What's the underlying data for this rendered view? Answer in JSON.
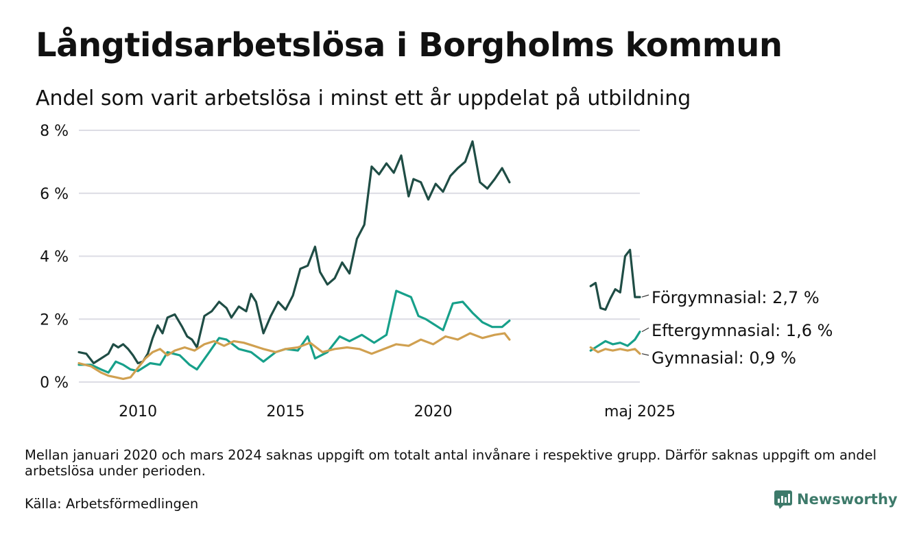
{
  "header": {
    "title": "Långtidsarbetslösa i Borgholms kommun",
    "subtitle": "Andel som varit arbetslösa i minst ett år uppdelat på utbildning"
  },
  "footer": {
    "note": "Mellan januari 2020 och mars 2024 saknas uppgift om totalt antal invånare i respektive grupp. Därför saknas uppgift om andel arbetslösa under perioden.",
    "source": "Källa: Arbetsförmedlingen",
    "brand": "Newsworthy"
  },
  "colors": {
    "forgymnasial": "#1f4d45",
    "eftergymnasial": "#17a08a",
    "gymnasial": "#d0a050",
    "grid": "#dcdce4",
    "brand": "#3d7a6a"
  },
  "chart_data": {
    "type": "line",
    "title": "Långtidsarbetslösa i Borgholms kommun",
    "subtitle": "Andel som varit arbetslösa i minst ett år uppdelat på utbildning",
    "y_unit": "%",
    "ylim": [
      0,
      8
    ],
    "y_ticks": [
      0,
      2,
      4,
      6,
      8
    ],
    "y_tick_labels": [
      "0 %",
      "2 %",
      "4 %",
      "6 %",
      "8 %"
    ],
    "x_tick_labels": [
      "2010",
      "2015",
      "2020",
      "maj 2025"
    ],
    "grid": true,
    "series": [
      {
        "name": "Förgymnasial",
        "end_label": "Förgymnasial: 2,7 %",
        "color": "#1f4d45",
        "segments": [
          [
            [
              "2008-01",
              0.95
            ],
            [
              "2008-04",
              0.9
            ],
            [
              "2008-07",
              0.6
            ],
            [
              "2008-10",
              0.75
            ],
            [
              "2009-01",
              0.9
            ],
            [
              "2009-03",
              1.2
            ],
            [
              "2009-05",
              1.1
            ],
            [
              "2009-07",
              1.2
            ],
            [
              "2009-09",
              1.05
            ],
            [
              "2009-11",
              0.85
            ],
            [
              "2010-01",
              0.6
            ],
            [
              "2010-03",
              0.65
            ],
            [
              "2010-05",
              0.9
            ],
            [
              "2010-07",
              1.4
            ],
            [
              "2010-09",
              1.8
            ],
            [
              "2010-11",
              1.55
            ],
            [
              "2011-01",
              2.05
            ],
            [
              "2011-04",
              2.15
            ],
            [
              "2011-07",
              1.75
            ],
            [
              "2011-09",
              1.45
            ],
            [
              "2011-11",
              1.35
            ],
            [
              "2012-01",
              1.1
            ],
            [
              "2012-04",
              2.1
            ],
            [
              "2012-07",
              2.25
            ],
            [
              "2012-10",
              2.55
            ],
            [
              "2013-01",
              2.35
            ],
            [
              "2013-03",
              2.05
            ],
            [
              "2013-06",
              2.4
            ],
            [
              "2013-09",
              2.25
            ],
            [
              "2013-11",
              2.8
            ],
            [
              "2014-01",
              2.55
            ],
            [
              "2014-04",
              1.55
            ],
            [
              "2014-07",
              2.1
            ],
            [
              "2014-10",
              2.55
            ],
            [
              "2015-01",
              2.3
            ],
            [
              "2015-04",
              2.75
            ],
            [
              "2015-07",
              3.6
            ],
            [
              "2015-10",
              3.7
            ],
            [
              "2016-01",
              4.3
            ],
            [
              "2016-03",
              3.5
            ],
            [
              "2016-06",
              3.1
            ],
            [
              "2016-09",
              3.3
            ],
            [
              "2016-12",
              3.8
            ],
            [
              "2017-03",
              3.45
            ],
            [
              "2017-06",
              4.55
            ],
            [
              "2017-09",
              5.0
            ],
            [
              "2017-12",
              6.85
            ],
            [
              "2018-03",
              6.6
            ],
            [
              "2018-06",
              6.95
            ],
            [
              "2018-09",
              6.65
            ],
            [
              "2018-12",
              7.2
            ],
            [
              "2019-03",
              5.9
            ],
            [
              "2019-05",
              6.45
            ],
            [
              "2019-08",
              6.35
            ],
            [
              "2019-11",
              5.8
            ],
            [
              "2020-02",
              6.3
            ],
            [
              "2020-05",
              6.05
            ],
            [
              "2020-08",
              6.55
            ],
            [
              "2020-11",
              6.8
            ],
            [
              "2021-02",
              7.0
            ],
            [
              "2021-05",
              7.65
            ],
            [
              "2021-08",
              6.35
            ],
            [
              "2021-11",
              6.15
            ],
            [
              "2022-02",
              6.45
            ],
            [
              "2022-05",
              6.8
            ],
            [
              "2022-08",
              6.35
            ]
          ],
          [
            [
              "2025-05",
              3.05
            ],
            [
              "2025-07",
              3.15
            ],
            [
              "2025-09",
              2.35
            ],
            [
              "2025-11",
              2.3
            ],
            [
              "2026-01",
              2.65
            ],
            [
              "2026-03",
              2.95
            ],
            [
              "2026-05",
              2.85
            ],
            [
              "2026-07",
              4.0
            ],
            [
              "2026-09",
              4.2
            ],
            [
              "2026-11",
              2.7
            ],
            [
              "2027-01",
              2.7
            ]
          ]
        ]
      },
      {
        "name": "Eftergymnasial",
        "end_label": "Eftergymnasial: 1,6 %",
        "color": "#17a08a",
        "segments": [
          [
            [
              "2008-01",
              0.55
            ],
            [
              "2008-06",
              0.55
            ],
            [
              "2008-10",
              0.4
            ],
            [
              "2009-01",
              0.3
            ],
            [
              "2009-04",
              0.65
            ],
            [
              "2009-07",
              0.55
            ],
            [
              "2009-10",
              0.4
            ],
            [
              "2010-01",
              0.35
            ],
            [
              "2010-06",
              0.6
            ],
            [
              "2010-10",
              0.55
            ],
            [
              "2011-01",
              0.95
            ],
            [
              "2011-06",
              0.85
            ],
            [
              "2011-10",
              0.55
            ],
            [
              "2012-01",
              0.4
            ],
            [
              "2012-06",
              0.95
            ],
            [
              "2012-10",
              1.4
            ],
            [
              "2013-01",
              1.35
            ],
            [
              "2013-06",
              1.05
            ],
            [
              "2013-11",
              0.95
            ],
            [
              "2014-04",
              0.65
            ],
            [
              "2014-09",
              0.95
            ],
            [
              "2015-01",
              1.05
            ],
            [
              "2015-06",
              1.0
            ],
            [
              "2015-10",
              1.45
            ],
            [
              "2016-01",
              0.75
            ],
            [
              "2016-06",
              0.95
            ],
            [
              "2016-11",
              1.45
            ],
            [
              "2017-03",
              1.3
            ],
            [
              "2017-08",
              1.5
            ],
            [
              "2018-01",
              1.25
            ],
            [
              "2018-06",
              1.5
            ],
            [
              "2018-10",
              2.9
            ],
            [
              "2019-01",
              2.8
            ],
            [
              "2019-04",
              2.7
            ],
            [
              "2019-07",
              2.1
            ],
            [
              "2019-10",
              2.0
            ],
            [
              "2020-01",
              1.85
            ],
            [
              "2020-05",
              1.65
            ],
            [
              "2020-09",
              2.5
            ],
            [
              "2021-01",
              2.55
            ],
            [
              "2021-05",
              2.2
            ],
            [
              "2021-09",
              1.9
            ],
            [
              "2022-01",
              1.75
            ],
            [
              "2022-05",
              1.75
            ],
            [
              "2022-08",
              1.95
            ]
          ],
          [
            [
              "2025-05",
              1.0
            ],
            [
              "2025-08",
              1.15
            ],
            [
              "2025-11",
              1.3
            ],
            [
              "2026-02",
              1.2
            ],
            [
              "2026-05",
              1.25
            ],
            [
              "2026-08",
              1.15
            ],
            [
              "2026-11",
              1.35
            ],
            [
              "2027-01",
              1.6
            ]
          ]
        ]
      },
      {
        "name": "Gymnasial",
        "end_label": "Gymnasial: 0,9 %",
        "color": "#d0a050",
        "segments": [
          [
            [
              "2008-01",
              0.6
            ],
            [
              "2008-06",
              0.5
            ],
            [
              "2008-10",
              0.3
            ],
            [
              "2009-01",
              0.2
            ],
            [
              "2009-04",
              0.15
            ],
            [
              "2009-07",
              0.1
            ],
            [
              "2009-10",
              0.15
            ],
            [
              "2010-01",
              0.45
            ],
            [
              "2010-04",
              0.75
            ],
            [
              "2010-07",
              0.95
            ],
            [
              "2010-10",
              1.05
            ],
            [
              "2011-01",
              0.85
            ],
            [
              "2011-04",
              1.0
            ],
            [
              "2011-08",
              1.1
            ],
            [
              "2011-12",
              1.0
            ],
            [
              "2012-04",
              1.2
            ],
            [
              "2012-08",
              1.3
            ],
            [
              "2012-12",
              1.15
            ],
            [
              "2013-04",
              1.3
            ],
            [
              "2013-08",
              1.25
            ],
            [
              "2013-12",
              1.15
            ],
            [
              "2014-04",
              1.05
            ],
            [
              "2014-09",
              0.95
            ],
            [
              "2015-01",
              1.05
            ],
            [
              "2015-06",
              1.1
            ],
            [
              "2015-11",
              1.25
            ],
            [
              "2016-04",
              0.95
            ],
            [
              "2016-09",
              1.05
            ],
            [
              "2017-02",
              1.1
            ],
            [
              "2017-07",
              1.05
            ],
            [
              "2017-12",
              0.9
            ],
            [
              "2018-05",
              1.05
            ],
            [
              "2018-10",
              1.2
            ],
            [
              "2019-03",
              1.15
            ],
            [
              "2019-08",
              1.35
            ],
            [
              "2020-01",
              1.2
            ],
            [
              "2020-06",
              1.45
            ],
            [
              "2020-11",
              1.35
            ],
            [
              "2021-04",
              1.55
            ],
            [
              "2021-09",
              1.4
            ],
            [
              "2022-02",
              1.5
            ],
            [
              "2022-06",
              1.55
            ],
            [
              "2022-08",
              1.35
            ]
          ],
          [
            [
              "2025-05",
              1.1
            ],
            [
              "2025-08",
              0.95
            ],
            [
              "2025-11",
              1.05
            ],
            [
              "2026-02",
              1.0
            ],
            [
              "2026-05",
              1.05
            ],
            [
              "2026-08",
              1.0
            ],
            [
              "2026-11",
              1.05
            ],
            [
              "2027-01",
              0.9
            ]
          ]
        ]
      }
    ]
  }
}
